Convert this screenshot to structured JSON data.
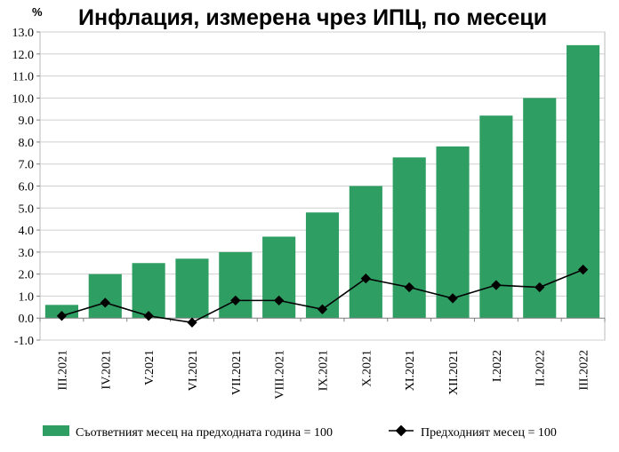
{
  "chart_data": {
    "type": "bar",
    "title": "Инфлация, измерена чрез ИПЦ, по месеци",
    "ylabel": "%",
    "ylim": [
      -1.0,
      13.0
    ],
    "yticks": [
      "13.0",
      "12.0",
      "11.0",
      "10.0",
      "9.0",
      "8.0",
      "7.0",
      "6.0",
      "5.0",
      "4.0",
      "3.0",
      "2.0",
      "1.0",
      "0.0",
      "-1.0"
    ],
    "categories": [
      "III.2021",
      "IV.2021",
      "V.2021",
      "VI.2021",
      "VII.2021",
      "VIII.2021",
      "IX.2021",
      "X.2021",
      "XI.2021",
      "XII.2021",
      "I.2022",
      "II.2022",
      "III.2022"
    ],
    "series": [
      {
        "name": "Съответният месец на предходната година = 100",
        "type": "bar",
        "color": "#2e9e63",
        "values": [
          0.6,
          2.0,
          2.5,
          2.7,
          3.0,
          3.7,
          4.8,
          6.0,
          7.3,
          7.8,
          9.2,
          10.0,
          12.4
        ]
      },
      {
        "name": "Предходният месец = 100",
        "type": "line",
        "color": "#000000",
        "values": [
          0.1,
          0.7,
          0.1,
          -0.2,
          0.8,
          0.8,
          0.4,
          1.8,
          1.4,
          0.9,
          1.5,
          1.4,
          2.2
        ]
      }
    ],
    "grid": true,
    "legend": "bottom"
  }
}
